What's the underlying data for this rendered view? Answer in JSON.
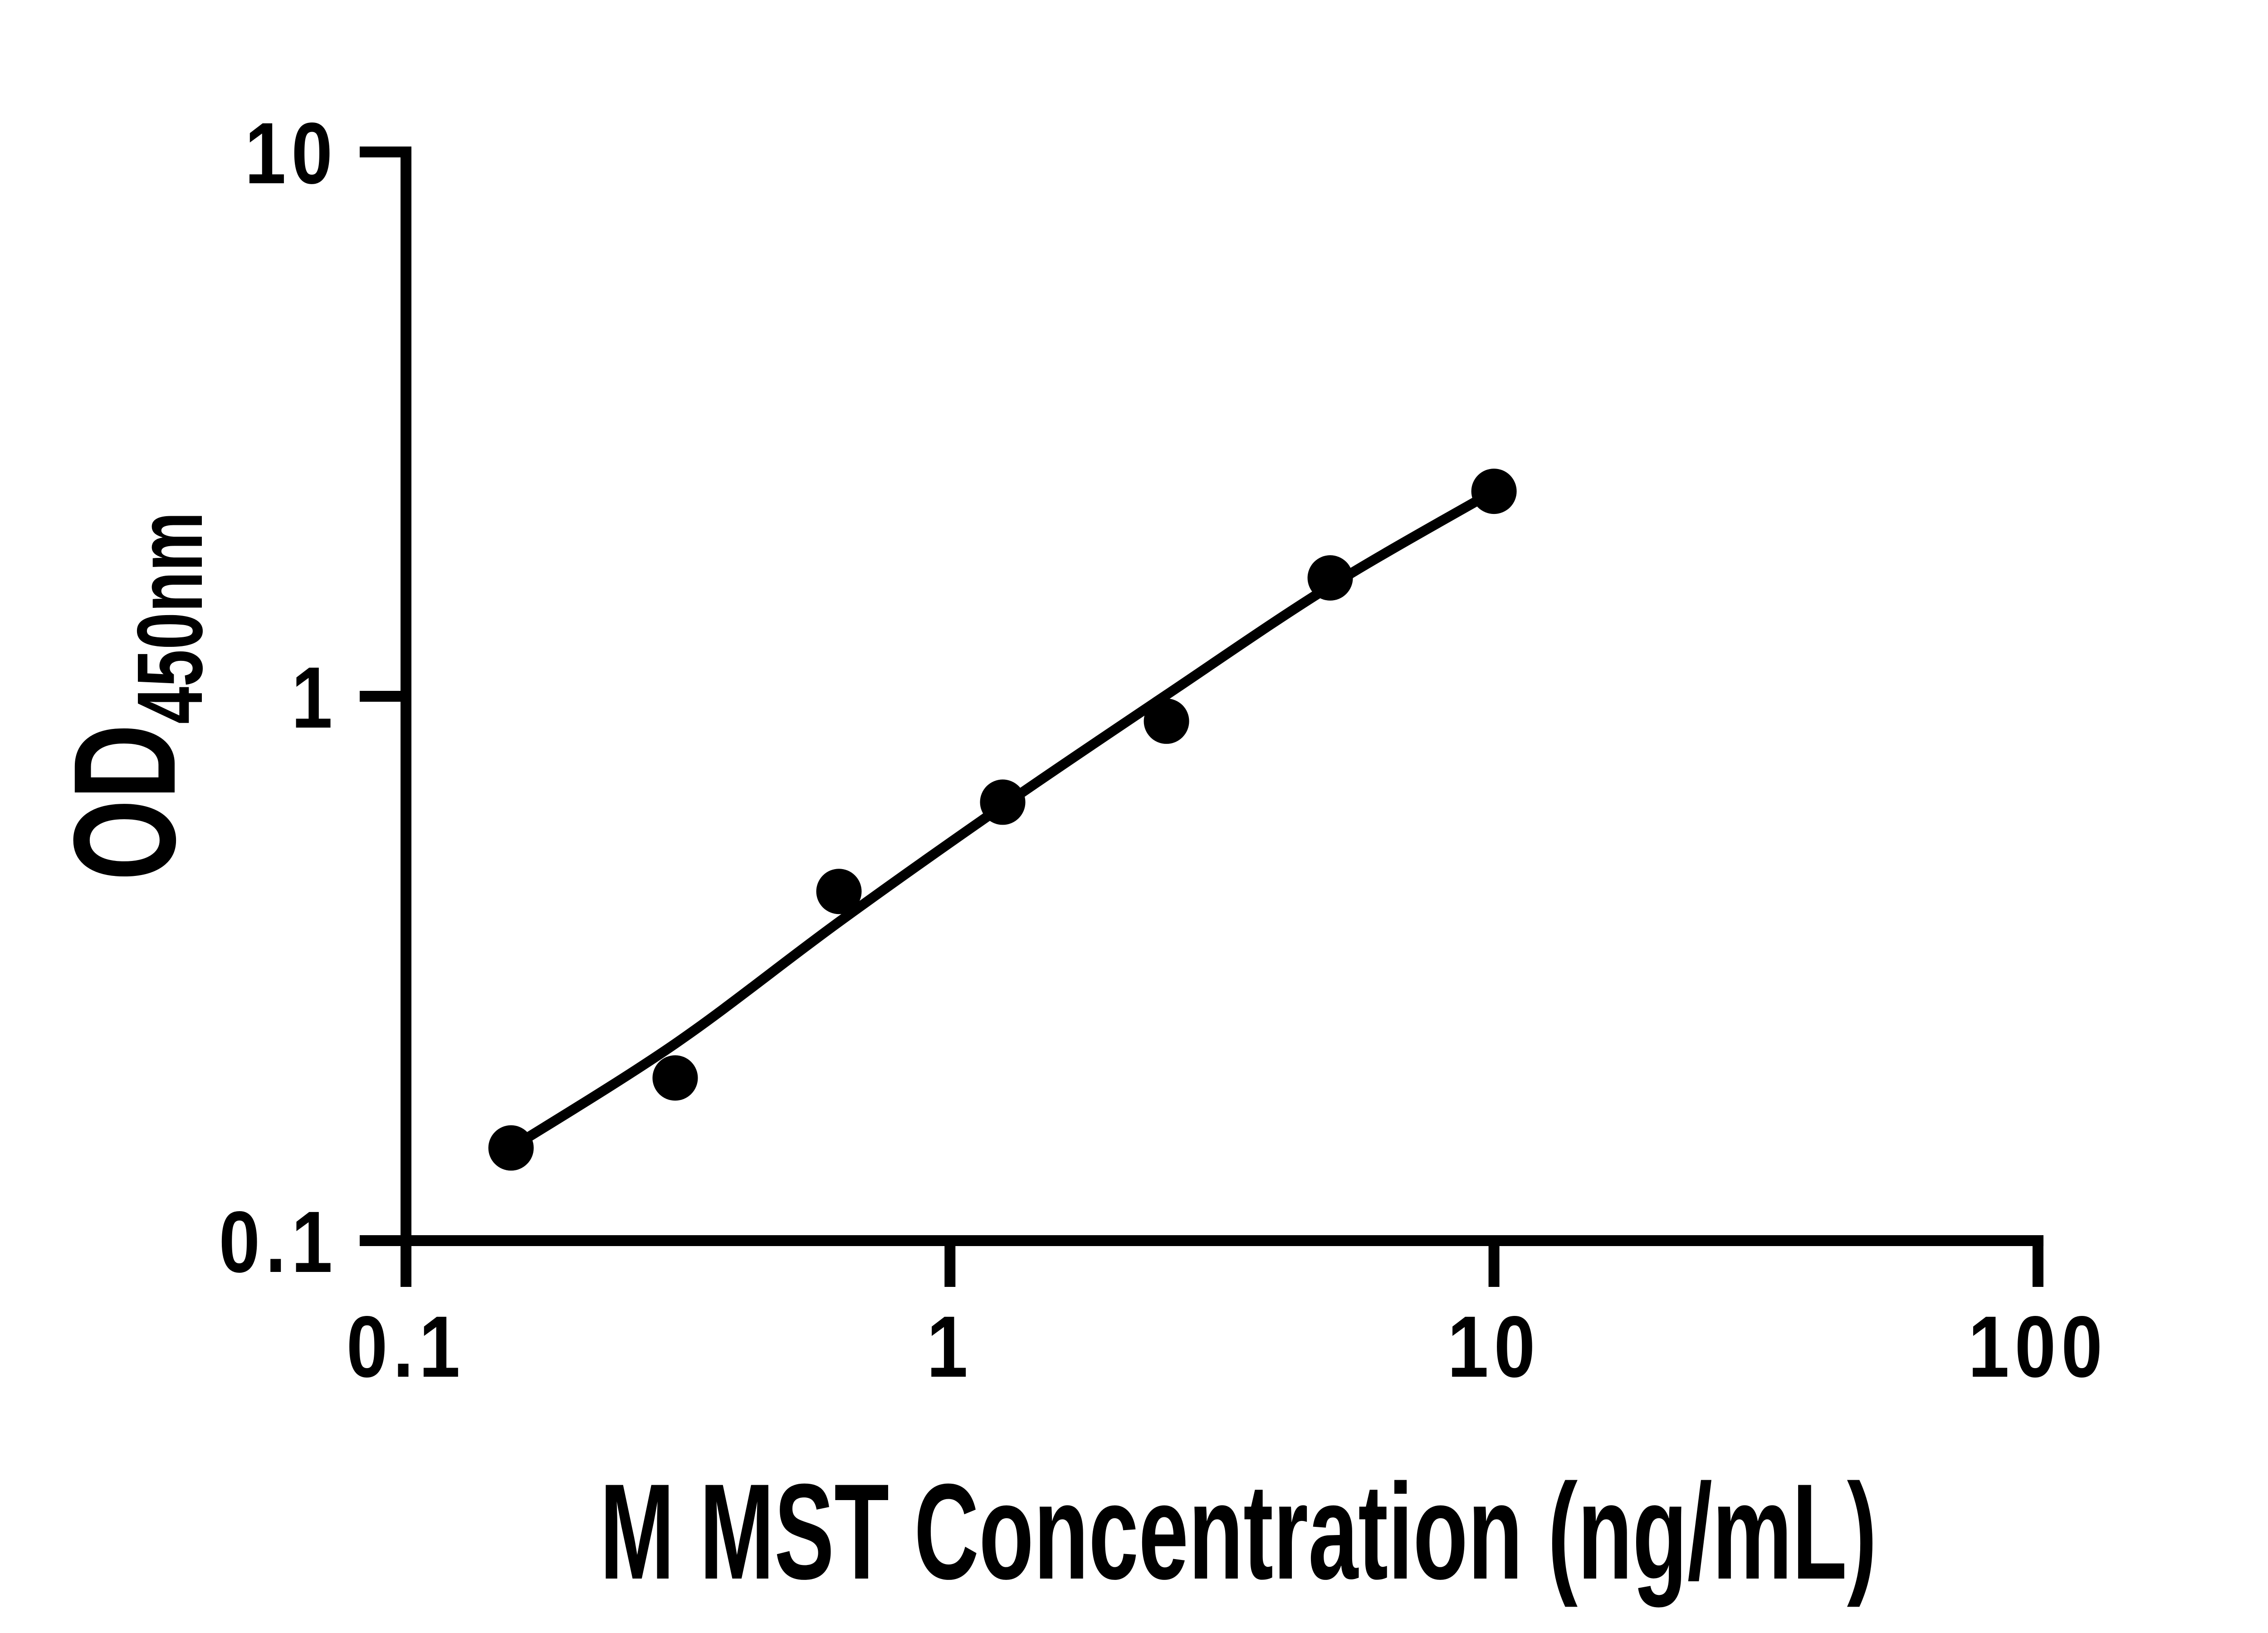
{
  "figure": {
    "background": "#ffffff",
    "ink_color": "#000000"
  },
  "chart_data": {
    "type": "scatter",
    "title": "",
    "x_scale": "log",
    "y_scale": "log",
    "xlim": [
      0.1,
      100
    ],
    "ylim": [
      0.1,
      10
    ],
    "xlabel": "M MST Concentration (ng/mL)",
    "ylabel_main": "OD",
    "ylabel_sub": "450nm",
    "grid": false,
    "legend_position": "none",
    "x_ticks": [
      {
        "value": 0.1,
        "label": "0.1"
      },
      {
        "value": 1,
        "label": "1"
      },
      {
        "value": 10,
        "label": "10"
      },
      {
        "value": 100,
        "label": "100"
      }
    ],
    "y_ticks": [
      {
        "value": 0.1,
        "label": "0.1"
      },
      {
        "value": 1,
        "label": "1"
      },
      {
        "value": 10,
        "label": "10"
      }
    ],
    "series": [
      {
        "name": "standard-curve-points",
        "marker": "circle",
        "color": "#000000",
        "points": [
          {
            "x": 0.156,
            "y": 0.148
          },
          {
            "x": 0.3125,
            "y": 0.199
          },
          {
            "x": 0.625,
            "y": 0.438
          },
          {
            "x": 1.25,
            "y": 0.639
          },
          {
            "x": 2.5,
            "y": 0.9
          },
          {
            "x": 5,
            "y": 1.65
          },
          {
            "x": 10,
            "y": 2.38
          }
        ]
      }
    ],
    "fit_line": {
      "name": "fitted-curve",
      "color": "#000000",
      "x": [
        0.156,
        0.3125,
        0.625,
        1.25,
        2.5,
        5,
        10
      ],
      "y": [
        0.148,
        0.23,
        0.385,
        0.629,
        1.006,
        1.594,
        2.381
      ]
    }
  }
}
